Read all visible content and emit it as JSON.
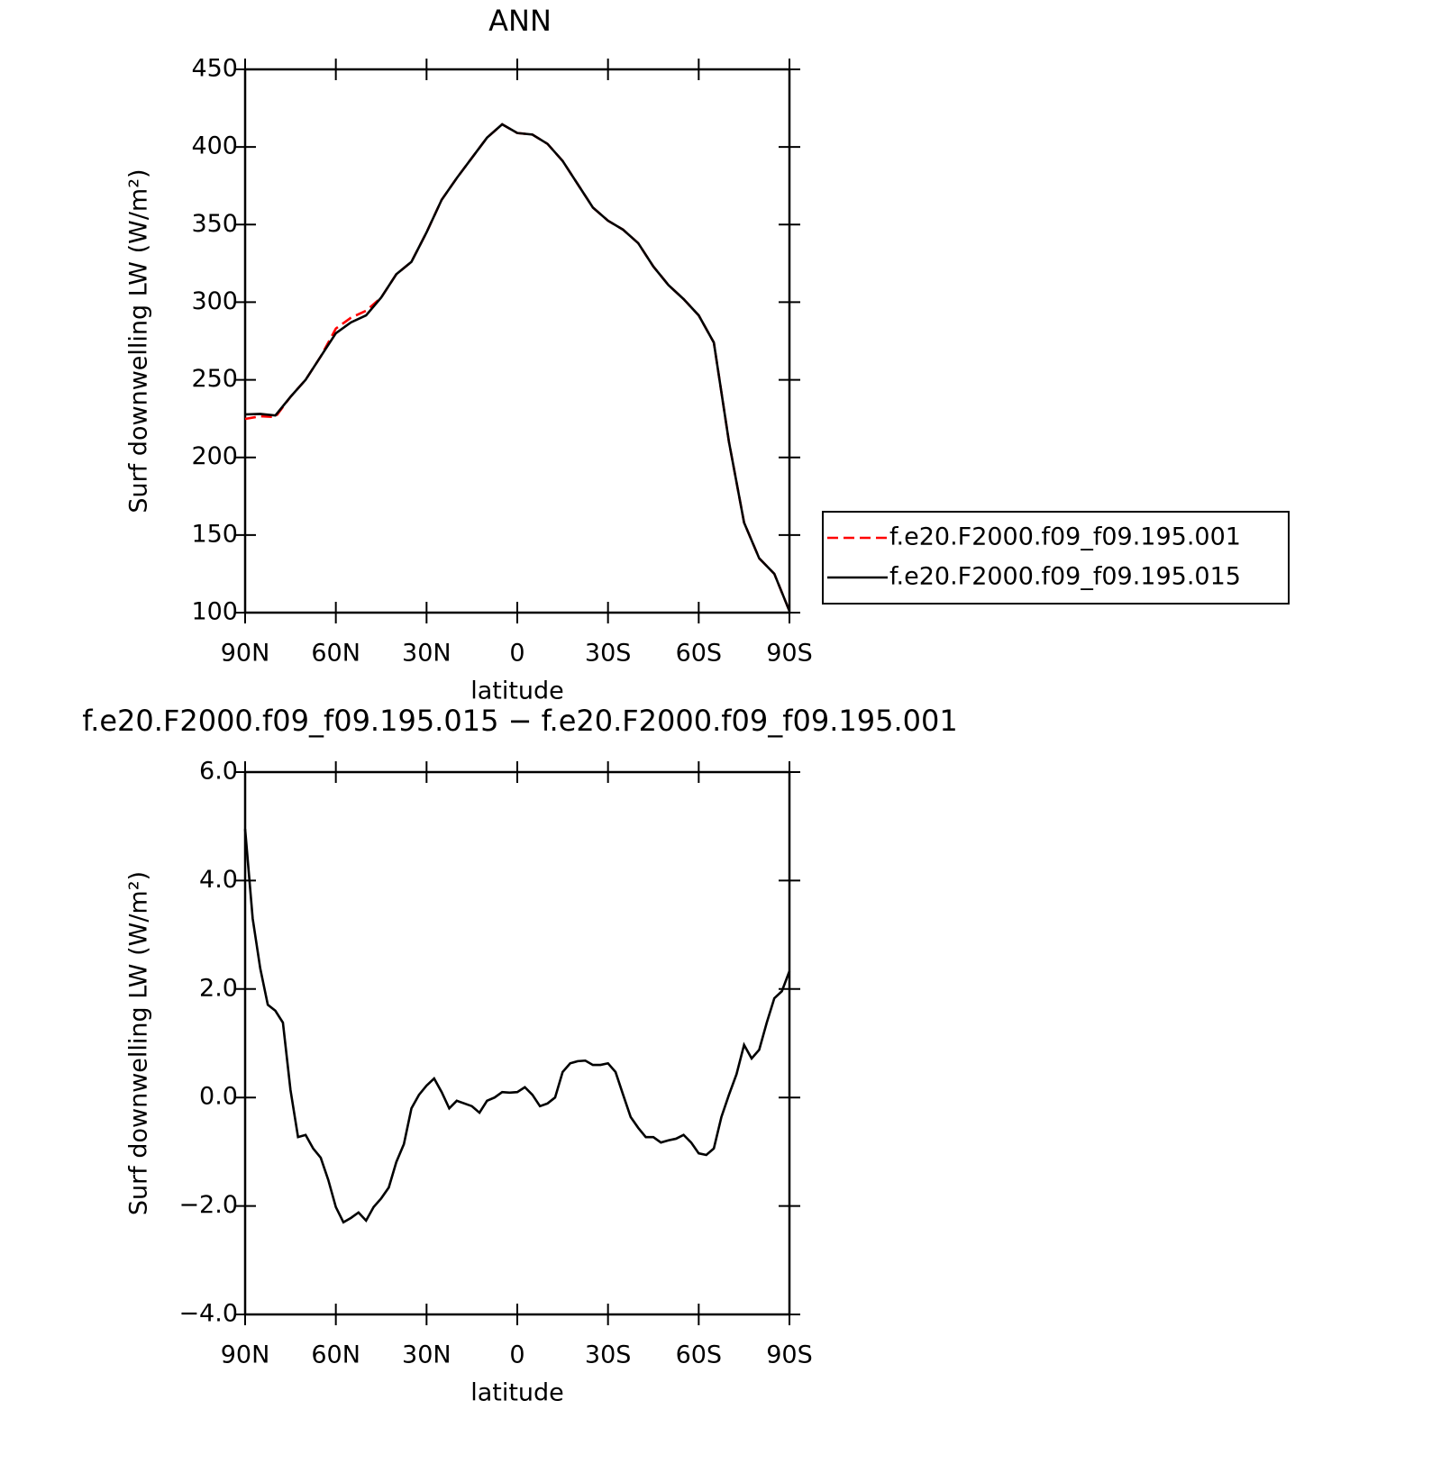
{
  "chart_data": [
    {
      "type": "line",
      "title": "ANN",
      "x_label": "latitude",
      "y_label": "Surf downwelling LW (W/m²)",
      "x": [
        90,
        85,
        80,
        75,
        70,
        65,
        60,
        55,
        50,
        45,
        40,
        35,
        30,
        25,
        20,
        15,
        10,
        5,
        0,
        -5,
        -10,
        -15,
        -20,
        -25,
        -30,
        -35,
        -40,
        -45,
        -50,
        -55,
        -60,
        -65,
        -70,
        -75,
        -80,
        -85,
        -90
      ],
      "series": [
        {
          "name": "f.e20.F2000.f09_f09.195.001",
          "color": "#ff0000",
          "dash": true,
          "values": [
            224.8,
            226.5,
            226,
            239,
            250,
            265,
            283,
            290,
            294.5,
            303,
            318,
            326,
            345,
            366,
            380,
            393,
            406,
            414.6,
            409,
            408,
            402,
            391,
            376,
            361,
            352.5,
            346.7,
            338,
            323,
            311,
            302,
            291.5,
            274,
            210,
            158,
            135,
            125,
            101
          ]
        },
        {
          "name": "f.e20.F2000.f09_f09.195.015",
          "color": "#000000",
          "dash": false,
          "values": [
            227.7,
            228,
            227,
            239,
            250,
            265,
            280,
            287,
            291.5,
            303,
            318,
            326,
            345,
            366,
            380,
            393,
            406,
            414.6,
            409,
            408,
            402,
            391,
            376,
            361,
            352.5,
            346.7,
            338,
            323,
            311,
            302,
            291.5,
            274,
            210,
            158,
            135,
            125,
            101
          ]
        }
      ],
      "xlim": [
        90,
        -90
      ],
      "xticks": [
        {
          "value": 90,
          "label": "90N"
        },
        {
          "value": 60,
          "label": "60N"
        },
        {
          "value": 30,
          "label": "30N"
        },
        0,
        {
          "value": -30,
          "label": "30S"
        },
        {
          "value": -60,
          "label": "60S"
        },
        {
          "value": -90,
          "label": "90S"
        }
      ],
      "ylim": [
        100,
        450
      ],
      "yticks": [
        100,
        150,
        200,
        250,
        300,
        350,
        400,
        450
      ],
      "legend": "right"
    },
    {
      "type": "line",
      "title": "f.e20.F2000.f09_f09.195.015 − f.e20.F2000.f09_f09.195.001",
      "x_label": "latitude",
      "y_label": "Surf downwelling LW (W/m²)",
      "x": [
        90,
        87.5,
        85,
        82.5,
        80,
        77.5,
        75,
        72.5,
        70,
        67.5,
        65,
        62.5,
        60,
        57.5,
        55,
        52.5,
        50,
        47.5,
        45,
        42.5,
        40,
        37.5,
        35,
        32.5,
        30,
        27.5,
        25,
        22.5,
        20,
        17.5,
        15,
        12.5,
        10,
        7.5,
        5,
        2.5,
        0,
        -2.5,
        -5,
        -7.5,
        -10,
        -12.5,
        -15,
        -17.5,
        -20,
        -22.5,
        -25,
        -27.5,
        -30,
        -32.5,
        -35,
        -37.5,
        -40,
        -42.5,
        -45,
        -47.5,
        -50,
        -52.5,
        -55,
        -57.5,
        -60,
        -62.5,
        -65,
        -67.5,
        -70,
        -72.5,
        -75,
        -77.5,
        -80,
        -82.5,
        -85,
        -87.5,
        -90
      ],
      "series": [
        {
          "color": "#000000",
          "dash": false,
          "values": [
            4.95,
            3.3,
            2.38,
            1.71,
            1.6,
            1.38,
            0.14,
            -0.73,
            -0.69,
            -0.94,
            -1.11,
            -1.52,
            -2.02,
            -2.3,
            -2.22,
            -2.12,
            -2.27,
            -2.02,
            -1.86,
            -1.66,
            -1.19,
            -0.86,
            -0.2,
            0.05,
            0.22,
            0.35,
            0.1,
            -0.2,
            -0.06,
            -0.11,
            -0.16,
            -0.28,
            -0.06,
            0.0,
            0.1,
            0.09,
            0.1,
            0.19,
            0.05,
            -0.16,
            -0.11,
            0.0,
            0.47,
            0.63,
            0.67,
            0.68,
            0.6,
            0.6,
            0.63,
            0.47,
            0.05,
            -0.36,
            -0.56,
            -0.73,
            -0.73,
            -0.83,
            -0.79,
            -0.76,
            -0.69,
            -0.83,
            -1.03,
            -1.06,
            -0.94,
            -0.36,
            0.05,
            0.43,
            0.97,
            0.72,
            0.88,
            1.38,
            1.83,
            1.96,
            2.33
          ]
        }
      ],
      "xlim": [
        90,
        -90
      ],
      "xticks": [
        {
          "value": 90,
          "label": "90N"
        },
        {
          "value": 60,
          "label": "60N"
        },
        {
          "value": 30,
          "label": "30N"
        },
        0,
        {
          "value": -30,
          "label": "30S"
        },
        {
          "value": -60,
          "label": "60S"
        },
        {
          "value": -90,
          "label": "90S"
        }
      ],
      "ylim": [
        -4,
        6
      ],
      "yticks": [
        {
          "value": -4,
          "label": "−4.0"
        },
        {
          "value": -2,
          "label": "−2.0"
        },
        {
          "value": 0,
          "label": "0.0"
        },
        {
          "value": 2,
          "label": "2.0"
        },
        {
          "value": 4,
          "label": "4.0"
        },
        {
          "value": 6,
          "label": "6.0"
        }
      ]
    }
  ]
}
